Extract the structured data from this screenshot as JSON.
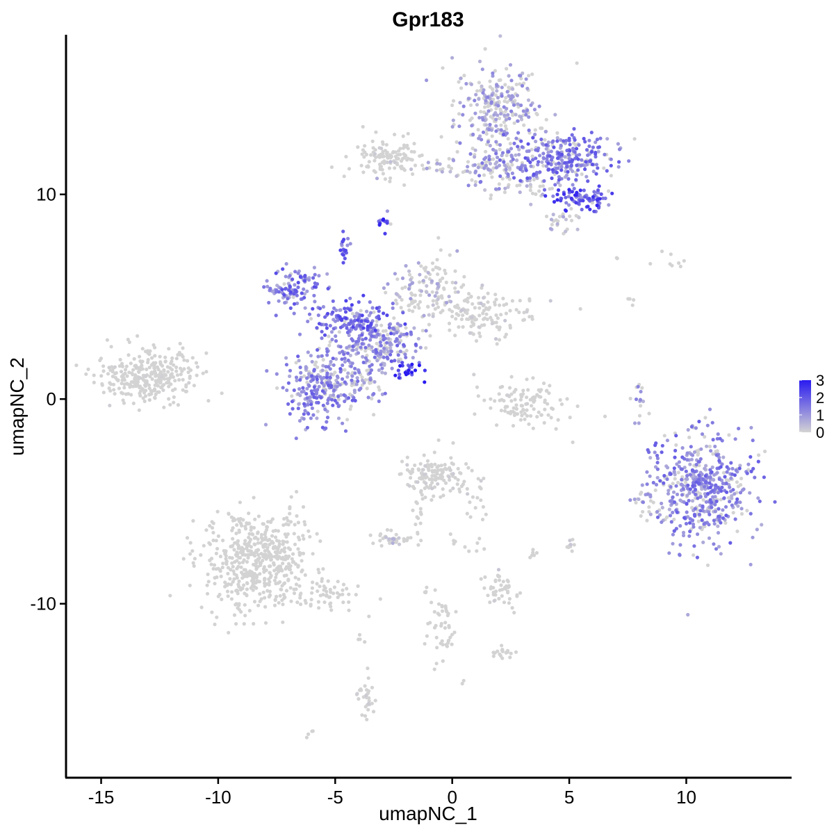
{
  "chart_data": {
    "type": "scatter",
    "title": "Gpr183",
    "xlabel": "umapNC_1",
    "ylabel": "umapNC_2",
    "xlim": [
      -16.5,
      14.5
    ],
    "ylim": [
      -18.5,
      17.8
    ],
    "x_ticks": [
      -15,
      -10,
      -5,
      0,
      5,
      10
    ],
    "y_ticks": [
      -10,
      0,
      10
    ],
    "x_tick_labels": [
      "-15",
      "-10",
      "-5",
      "0",
      "5",
      "10"
    ],
    "y_tick_labels": [
      "-10",
      "0",
      "10"
    ],
    "color_scale": {
      "low": "#d3d3d3",
      "high": "#2a1bf0",
      "min": 0,
      "max": 3,
      "breaks": [
        0,
        1,
        2,
        3
      ],
      "labels": [
        "0",
        "1",
        "2",
        "3"
      ]
    },
    "clusters": [
      {
        "cx": 1.9,
        "cy": 14.2,
        "sx": 0.9,
        "sy": 1.1,
        "n": 260,
        "expr": 0.9
      },
      {
        "cx": 4.5,
        "cy": 11.8,
        "sx": 1.1,
        "sy": 0.6,
        "n": 280,
        "expr": 1.4
      },
      {
        "cx": 5.4,
        "cy": 9.8,
        "sx": 0.6,
        "sy": 0.35,
        "n": 90,
        "expr": 1.9
      },
      {
        "cx": 1.5,
        "cy": 11.6,
        "sx": 0.5,
        "sy": 0.6,
        "n": 60,
        "expr": 1.0
      },
      {
        "cx": 4.7,
        "cy": 8.8,
        "sx": 0.4,
        "sy": 0.3,
        "n": 25,
        "expr": 0.5
      },
      {
        "cx": 0.0,
        "cy": 11.3,
        "sx": 1.5,
        "sy": 0.3,
        "n": 60,
        "expr": 0.7
      },
      {
        "cx": -2.8,
        "cy": 11.8,
        "sx": 0.8,
        "sy": 0.45,
        "n": 110,
        "expr": 0.1
      },
      {
        "cx": 3.3,
        "cy": 10.3,
        "sx": 0.8,
        "sy": 0.3,
        "n": 30,
        "expr": 0.6
      },
      {
        "cx": -2.9,
        "cy": 8.6,
        "sx": 0.15,
        "sy": 0.2,
        "n": 15,
        "expr": 2.0
      },
      {
        "cx": -4.6,
        "cy": 7.3,
        "sx": 0.15,
        "sy": 0.3,
        "n": 20,
        "expr": 1.6
      },
      {
        "cx": -6.8,
        "cy": 5.3,
        "sx": 0.6,
        "sy": 0.5,
        "n": 110,
        "expr": 1.5
      },
      {
        "cx": -4.3,
        "cy": 3.8,
        "sx": 0.8,
        "sy": 0.5,
        "n": 150,
        "expr": 1.6
      },
      {
        "cx": -2.8,
        "cy": 2.8,
        "sx": 0.8,
        "sy": 0.6,
        "n": 160,
        "expr": 1.2
      },
      {
        "cx": -1.2,
        "cy": 5.2,
        "sx": 0.7,
        "sy": 0.7,
        "n": 120,
        "expr": 0.6
      },
      {
        "cx": 1.2,
        "cy": 4.2,
        "sx": 1.2,
        "sy": 0.6,
        "n": 140,
        "expr": 0.2
      },
      {
        "cx": -5.8,
        "cy": 0.3,
        "sx": 0.7,
        "sy": 0.9,
        "n": 180,
        "expr": 1.3
      },
      {
        "cx": -4.4,
        "cy": 1.3,
        "sx": 0.8,
        "sy": 0.8,
        "n": 160,
        "expr": 1.1
      },
      {
        "cx": -2.0,
        "cy": 1.5,
        "sx": 0.4,
        "sy": 0.3,
        "n": 25,
        "expr": 2.6
      },
      {
        "cx": -13.0,
        "cy": 1.1,
        "sx": 1.1,
        "sy": 0.6,
        "n": 300,
        "expr": 0.05
      },
      {
        "cx": 3.1,
        "cy": -0.3,
        "sx": 0.8,
        "sy": 0.6,
        "n": 110,
        "expr": 0.05
      },
      {
        "cx": 8.0,
        "cy": 0.2,
        "sx": 0.15,
        "sy": 0.5,
        "n": 15,
        "expr": 1.0
      },
      {
        "cx": 10.7,
        "cy": -4.3,
        "sx": 1.1,
        "sy": 1.3,
        "n": 500,
        "expr": 1.3
      },
      {
        "cx": 8.2,
        "cy": -5.0,
        "sx": 0.3,
        "sy": 0.4,
        "n": 20,
        "expr": 0.8
      },
      {
        "cx": -8.4,
        "cy": -7.8,
        "sx": 1.1,
        "sy": 1.2,
        "n": 520,
        "expr": 0.0
      },
      {
        "cx": -5.6,
        "cy": -9.6,
        "sx": 0.9,
        "sy": 0.4,
        "n": 60,
        "expr": 0.0
      },
      {
        "cx": -0.8,
        "cy": -3.8,
        "sx": 0.6,
        "sy": 0.5,
        "n": 130,
        "expr": 0.1
      },
      {
        "cx": 0.9,
        "cy": -4.8,
        "sx": 0.3,
        "sy": 0.6,
        "n": 20,
        "expr": 0.1
      },
      {
        "cx": -1.4,
        "cy": -5.9,
        "sx": 0.15,
        "sy": 0.6,
        "n": 15,
        "expr": 0.0
      },
      {
        "cx": -2.6,
        "cy": -6.8,
        "sx": 0.4,
        "sy": 0.2,
        "n": 35,
        "expr": 0.4
      },
      {
        "cx": 2.2,
        "cy": -9.2,
        "sx": 0.4,
        "sy": 0.4,
        "n": 45,
        "expr": 0.2
      },
      {
        "cx": 3.4,
        "cy": -7.5,
        "sx": 0.1,
        "sy": 0.2,
        "n": 6,
        "expr": 0.0
      },
      {
        "cx": 5.0,
        "cy": -7.2,
        "sx": 0.1,
        "sy": 0.2,
        "n": 10,
        "expr": 0.3
      },
      {
        "cx": -0.4,
        "cy": -11.3,
        "sx": 0.3,
        "sy": 0.8,
        "n": 45,
        "expr": 0.0
      },
      {
        "cx": 2.2,
        "cy": -12.4,
        "sx": 0.3,
        "sy": 0.15,
        "n": 20,
        "expr": 0.0
      },
      {
        "cx": -3.6,
        "cy": -14.6,
        "sx": 0.2,
        "sy": 0.6,
        "n": 30,
        "expr": 0.1
      },
      {
        "cx": -6.1,
        "cy": -16.3,
        "sx": 0.1,
        "sy": 0.1,
        "n": 4,
        "expr": 0.0
      },
      {
        "cx": -3.9,
        "cy": -11.8,
        "sx": 0.1,
        "sy": 0.2,
        "n": 4,
        "expr": 0.0
      },
      {
        "cx": 9.4,
        "cy": 6.8,
        "sx": 0.3,
        "sy": 0.2,
        "n": 8,
        "expr": 0.0
      },
      {
        "cx": 7.7,
        "cy": 4.8,
        "sx": 0.1,
        "sy": 0.15,
        "n": 4,
        "expr": 0.0
      },
      {
        "cx": 7.0,
        "cy": 6.9,
        "sx": 0.05,
        "sy": 0.05,
        "n": 2,
        "expr": 0.0
      },
      {
        "cx": 0.7,
        "cy": -7.0,
        "sx": 0.6,
        "sy": 0.3,
        "n": 10,
        "expr": 0.0
      },
      {
        "cx": -1.0,
        "cy": -9.5,
        "sx": 0.1,
        "sy": 0.2,
        "n": 4,
        "expr": 0.0
      },
      {
        "cx": 0.5,
        "cy": -13.8,
        "sx": 0.05,
        "sy": 0.05,
        "n": 2,
        "expr": 0.0
      }
    ]
  }
}
